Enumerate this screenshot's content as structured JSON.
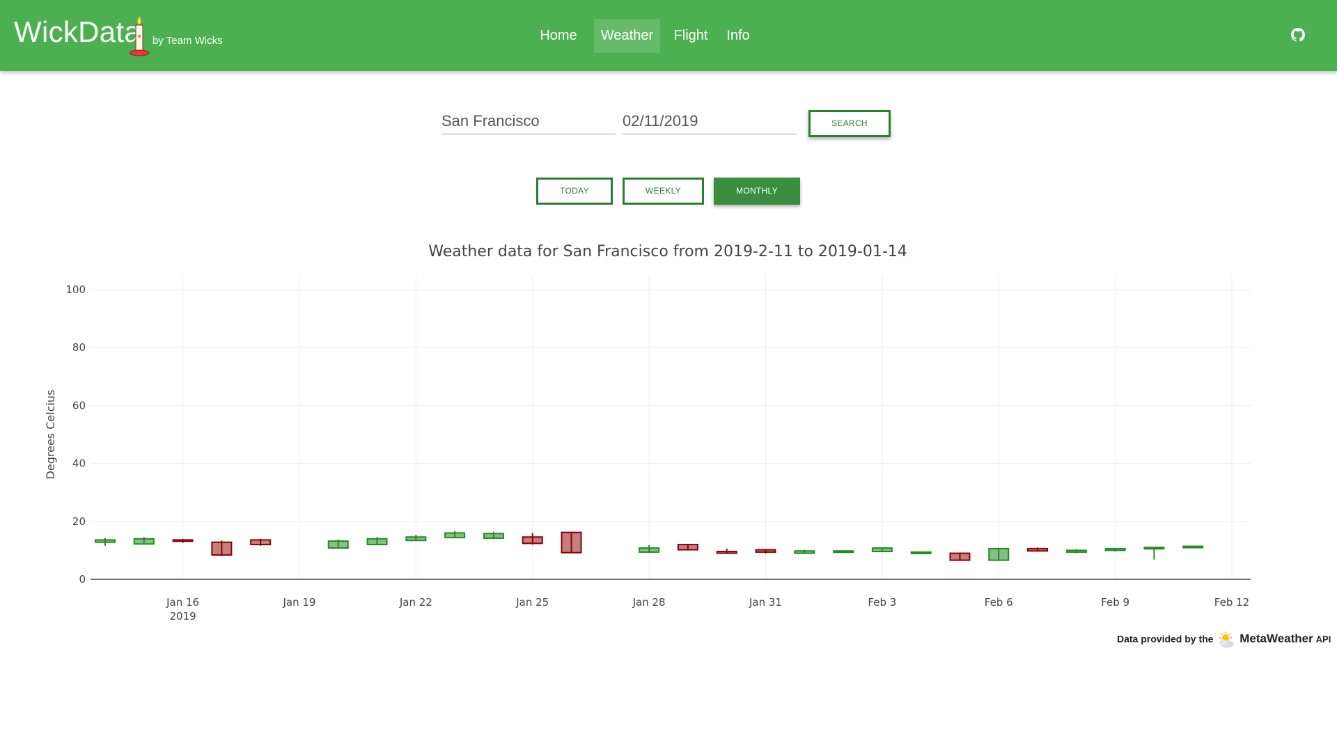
{
  "app": {
    "brand": "WickData",
    "brand_sub": "by Team Wicks",
    "nav": [
      "Home",
      "Weather",
      "Flight",
      "Info"
    ],
    "active_nav": "Weather",
    "colors": {
      "primary": "#4caf50",
      "accent_dark": "#2e7d32",
      "increasing": "#228b22",
      "decreasing": "#8b0000"
    }
  },
  "search": {
    "city": "San Francisco",
    "date": "02/11/2019",
    "button": "SEARCH"
  },
  "range_buttons": {
    "today": "TODAY",
    "weekly": "WEEKLY",
    "monthly": "MONTHLY",
    "selected": "MONTHLY"
  },
  "credit": {
    "prefix": "Data provided by the",
    "name": "MetaWeather",
    "suffix": "API"
  },
  "chart_data": {
    "type": "candlestick",
    "title": "Weather data for San Francisco from 2019-2-11 to 2019-01-14",
    "ylabel": "Degrees Celcius",
    "xlabel": "",
    "ylim": [
      0,
      100
    ],
    "yticks": [
      0,
      20,
      40,
      60,
      80,
      100
    ],
    "xlim": [
      "2019-01-14",
      "2019-02-12"
    ],
    "xticks": [
      {
        "date": "2019-01-16",
        "label": "Jan 16",
        "sub": "2019"
      },
      {
        "date": "2019-01-19",
        "label": "Jan 19"
      },
      {
        "date": "2019-01-22",
        "label": "Jan 22"
      },
      {
        "date": "2019-01-25",
        "label": "Jan 25"
      },
      {
        "date": "2019-01-28",
        "label": "Jan 28"
      },
      {
        "date": "2019-01-31",
        "label": "Jan 31"
      },
      {
        "date": "2019-02-03",
        "label": "Feb 3"
      },
      {
        "date": "2019-02-06",
        "label": "Feb 6"
      },
      {
        "date": "2019-02-09",
        "label": "Feb 9"
      },
      {
        "date": "2019-02-12",
        "label": "Feb 12"
      }
    ],
    "grid": true,
    "legend": "none",
    "candles": [
      {
        "date": "2019-01-14",
        "open": 12.8,
        "close": 13.6,
        "high": 14.2,
        "low": 11.6
      },
      {
        "date": "2019-01-15",
        "open": 12.2,
        "close": 14.0,
        "high": 14.6,
        "low": 12.0
      },
      {
        "date": "2019-01-16",
        "open": 13.6,
        "close": 13.2,
        "high": 14.0,
        "low": 12.6
      },
      {
        "date": "2019-01-17",
        "open": 12.8,
        "close": 8.4,
        "high": 13.4,
        "low": 8.0
      },
      {
        "date": "2019-01-18",
        "open": 13.6,
        "close": 12.0,
        "high": 14.0,
        "low": 11.6
      },
      {
        "date": "2019-01-20",
        "open": 10.8,
        "close": 13.2,
        "high": 13.8,
        "low": 10.6
      },
      {
        "date": "2019-01-21",
        "open": 12.0,
        "close": 14.0,
        "high": 14.6,
        "low": 11.8
      },
      {
        "date": "2019-01-22",
        "open": 13.4,
        "close": 14.6,
        "high": 15.4,
        "low": 13.2
      },
      {
        "date": "2019-01-23",
        "open": 14.4,
        "close": 16.0,
        "high": 16.6,
        "low": 14.2
      },
      {
        "date": "2019-01-24",
        "open": 14.2,
        "close": 15.8,
        "high": 16.4,
        "low": 14.0
      },
      {
        "date": "2019-01-25",
        "open": 14.6,
        "close": 12.4,
        "high": 16.0,
        "low": 12.0
      },
      {
        "date": "2019-01-26",
        "open": 16.2,
        "close": 9.2,
        "high": 16.2,
        "low": 9.0
      },
      {
        "date": "2019-01-28",
        "open": 9.4,
        "close": 10.8,
        "high": 11.8,
        "low": 9.2
      },
      {
        "date": "2019-01-29",
        "open": 12.0,
        "close": 10.2,
        "high": 12.2,
        "low": 10.0
      },
      {
        "date": "2019-01-30",
        "open": 9.6,
        "close": 9.0,
        "high": 10.6,
        "low": 8.8
      },
      {
        "date": "2019-01-31",
        "open": 10.2,
        "close": 9.4,
        "high": 10.4,
        "low": 8.9
      },
      {
        "date": "2019-02-01",
        "open": 9.0,
        "close": 9.8,
        "high": 10.2,
        "low": 8.8
      },
      {
        "date": "2019-02-02",
        "open": 9.4,
        "close": 9.8,
        "high": 10.0,
        "low": 9.2
      },
      {
        "date": "2019-02-03",
        "open": 9.6,
        "close": 10.8,
        "high": 11.0,
        "low": 9.4
      },
      {
        "date": "2019-02-04",
        "open": 9.0,
        "close": 9.4,
        "high": 9.6,
        "low": 8.8
      },
      {
        "date": "2019-02-05",
        "open": 9.0,
        "close": 6.6,
        "high": 9.2,
        "low": 6.4
      },
      {
        "date": "2019-02-06",
        "open": 6.6,
        "close": 10.6,
        "high": 10.8,
        "low": 6.4
      },
      {
        "date": "2019-02-07",
        "open": 10.6,
        "close": 9.8,
        "high": 11.0,
        "low": 9.6
      },
      {
        "date": "2019-02-08",
        "open": 9.4,
        "close": 10.0,
        "high": 10.4,
        "low": 9.0
      },
      {
        "date": "2019-02-09",
        "open": 10.0,
        "close": 10.6,
        "high": 10.8,
        "low": 9.6
      },
      {
        "date": "2019-02-10",
        "open": 10.6,
        "close": 11.0,
        "high": 11.2,
        "low": 6.8
      },
      {
        "date": "2019-02-11",
        "open": 11.0,
        "close": 11.4,
        "high": 11.6,
        "low": 10.8
      }
    ]
  }
}
